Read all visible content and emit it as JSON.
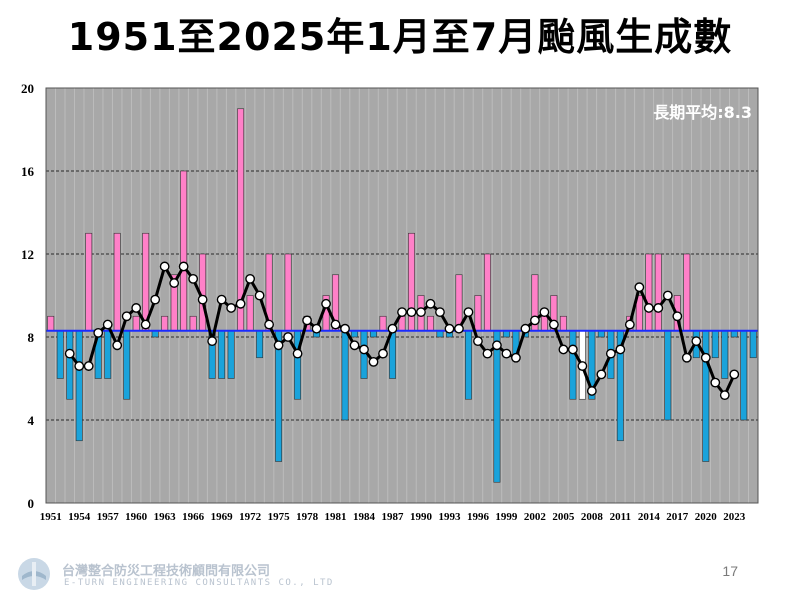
{
  "page": {
    "title": "1951至2025年1月至7月颱風生成數",
    "slide_number": "17",
    "company_cn": "台灣整合防災工程技術顧問有限公司",
    "company_en": "E-TURN ENGINEERING CONSULTANTS CO., LTD"
  },
  "colors": {
    "plot_bg": "#a8a8a8",
    "above": "#ff80c8",
    "below": "#1aa3db",
    "current": "#ffffff",
    "mean_line": "#1a2cff",
    "smooth_line": "#000000"
  },
  "chart_data": {
    "type": "bar",
    "title": "1951至2025年1月至7月颱風生成數",
    "ylim": [
      0,
      20
    ],
    "yticks": [
      "0",
      "4",
      "8",
      "12",
      "16",
      "20"
    ],
    "baseline": 8.3,
    "annotation": "長期平均:8.3",
    "xtick_labels": [
      "1951",
      "1954",
      "1957",
      "1960",
      "1963",
      "1966",
      "1969",
      "1972",
      "1975",
      "1978",
      "1981",
      "1984",
      "1987",
      "1990",
      "1993",
      "1996",
      "1999",
      "2002",
      "2005",
      "2008",
      "2011",
      "2014",
      "2017",
      "2020",
      "2023"
    ],
    "years": [
      1951,
      1952,
      1953,
      1954,
      1955,
      1956,
      1957,
      1958,
      1959,
      1960,
      1961,
      1962,
      1963,
      1964,
      1965,
      1966,
      1967,
      1968,
      1969,
      1970,
      1971,
      1972,
      1973,
      1974,
      1975,
      1976,
      1977,
      1978,
      1979,
      1980,
      1981,
      1982,
      1983,
      1984,
      1985,
      1986,
      1987,
      1988,
      1989,
      1990,
      1991,
      1992,
      1993,
      1994,
      1995,
      1996,
      1997,
      1998,
      1999,
      2000,
      2001,
      2002,
      2003,
      2004,
      2005,
      2006,
      2007,
      2008,
      2009,
      2010,
      2011,
      2012,
      2013,
      2014,
      2015,
      2016,
      2017,
      2018,
      2019,
      2020,
      2021,
      2022,
      2023,
      2024,
      2025
    ],
    "values": [
      9,
      6,
      5,
      3,
      13,
      6,
      6,
      13,
      5,
      9,
      13,
      8,
      9,
      11,
      16,
      9,
      12,
      6,
      6,
      6,
      19,
      10,
      7,
      12,
      2,
      12,
      5,
      9,
      8,
      10,
      11,
      4,
      8,
      6,
      8,
      9,
      6,
      9,
      13,
      10,
      9,
      8,
      8,
      11,
      5,
      10,
      12,
      1,
      8,
      7,
      8,
      11,
      9,
      10,
      9,
      5,
      5,
      5,
      8,
      6,
      3,
      9,
      10,
      12,
      12,
      4,
      10,
      12,
      7,
      2,
      7,
      6,
      8,
      4,
      7
    ],
    "series": [
      {
        "name": "smoothed",
        "values": [
          null,
          null,
          7.2,
          6.6,
          6.6,
          8.2,
          8.6,
          7.6,
          9.0,
          9.4,
          8.6,
          9.8,
          11.4,
          10.6,
          11.4,
          10.8,
          9.8,
          7.8,
          9.8,
          9.4,
          9.6,
          10.8,
          10.0,
          8.6,
          7.6,
          8.0,
          7.2,
          8.8,
          8.4,
          9.6,
          8.6,
          8.4,
          7.6,
          7.4,
          6.8,
          7.2,
          8.4,
          9.2,
          9.2,
          9.2,
          9.6,
          9.2,
          8.4,
          8.4,
          9.2,
          7.8,
          7.2,
          7.6,
          7.2,
          7.0,
          8.4,
          8.8,
          9.2,
          8.6,
          7.4,
          7.4,
          6.6,
          5.4,
          6.2,
          7.2,
          7.4,
          8.6,
          10.4,
          9.4,
          9.4,
          10.0,
          9.0,
          7.0,
          7.8,
          7.0,
          5.8,
          5.2,
          6.2,
          null,
          null
        ]
      }
    ]
  }
}
